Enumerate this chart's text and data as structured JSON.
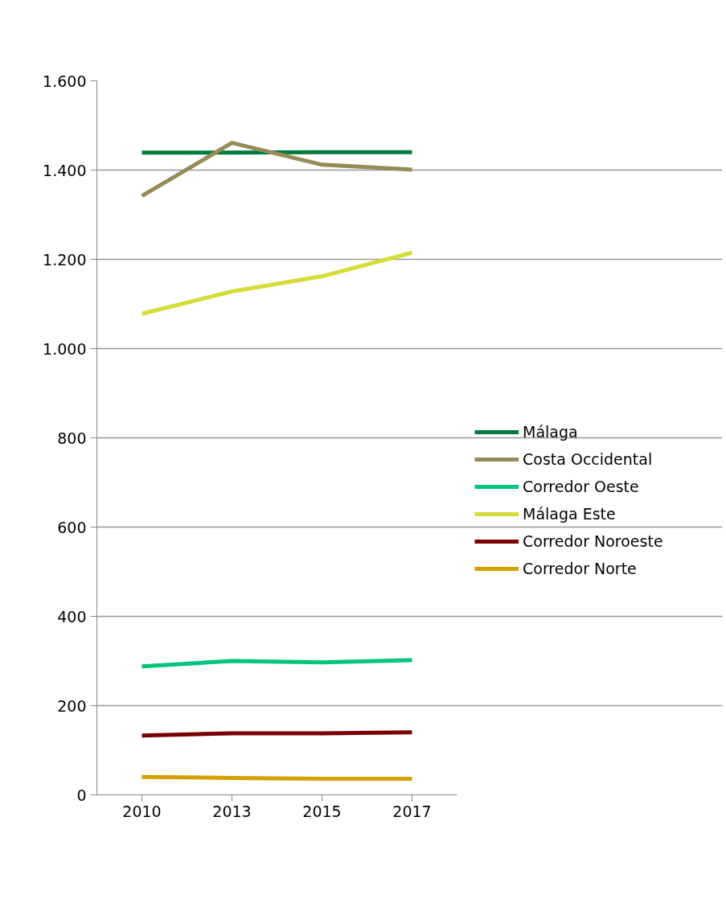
{
  "chart_data": {
    "type": "line",
    "categories": [
      "2010",
      "2013",
      "2015",
      "2017"
    ],
    "series": [
      {
        "name": "Málaga",
        "color": "#007a3d",
        "values": [
          1439,
          1439,
          1440,
          1440
        ]
      },
      {
        "name": "Costa Occidental",
        "color": "#958b56",
        "values": [
          1342,
          1461,
          1412,
          1401
        ]
      },
      {
        "name": "Corredor Oeste",
        "color": "#00c47c",
        "values": [
          288,
          300,
          297,
          302
        ]
      },
      {
        "name": "Málaga Este",
        "color": "#d6dc36",
        "values": [
          1078,
          1128,
          1162,
          1215
        ]
      },
      {
        "name": "Corredor Noroeste",
        "color": "#7a0000",
        "values": [
          133,
          138,
          138,
          140
        ]
      },
      {
        "name": "Corredor Norte",
        "color": "#d4a000",
        "values": [
          40,
          38,
          36,
          36
        ]
      }
    ],
    "ylim": [
      0,
      1600
    ],
    "yticks": [
      0,
      200,
      400,
      600,
      800,
      {
        "value": 1000,
        "label": "1.000"
      },
      {
        "value": 1200,
        "label": "1.200"
      },
      {
        "value": 1400,
        "label": "1.400"
      },
      {
        "value": 1600,
        "label": "1.600"
      }
    ],
    "grid": "y",
    "legend": "right",
    "marker": "none",
    "line_style": "solid"
  }
}
